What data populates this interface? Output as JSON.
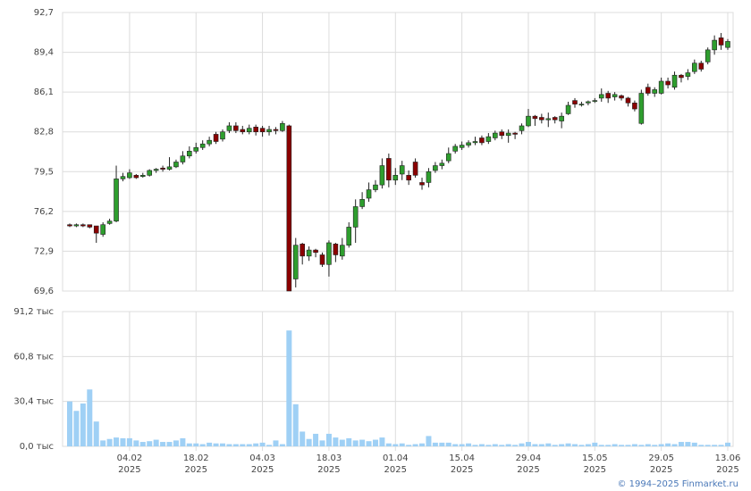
{
  "chart_data": {
    "type": "candlestick",
    "categories": [
      null,
      null,
      null,
      null,
      null,
      null,
      null,
      null,
      null,
      "04.02",
      null,
      null,
      null,
      null,
      null,
      null,
      null,
      null,
      null,
      "18.02",
      null,
      null,
      null,
      null,
      null,
      null,
      null,
      null,
      null,
      "04.03",
      null,
      null,
      null,
      null,
      null,
      null,
      null,
      null,
      null,
      "18.03",
      null,
      null,
      null,
      null,
      null,
      null,
      null,
      null,
      null,
      "01.04",
      null,
      null,
      null,
      null,
      null,
      null,
      null,
      null,
      null,
      "15.04",
      null,
      null,
      null,
      null,
      null,
      null,
      null,
      null,
      null,
      "29.04",
      null,
      null,
      null,
      null,
      null,
      null,
      null,
      null,
      null,
      "15.05",
      null,
      null,
      null,
      null,
      null,
      null,
      null,
      null,
      null,
      "29.05",
      null,
      null,
      null,
      null,
      null,
      null,
      null,
      null,
      null,
      "13.06"
    ],
    "year_label": "2025",
    "open": [
      75.1,
      75.0,
      75.1,
      75.1,
      75.0,
      74.3,
      75.2,
      75.4,
      78.9,
      79.0,
      79.2,
      79.1,
      79.2,
      79.6,
      79.8,
      79.7,
      79.9,
      80.3,
      80.8,
      81.2,
      81.5,
      81.8,
      82.6,
      82.2,
      82.9,
      83.3,
      83.0,
      82.8,
      83.2,
      83.1,
      82.8,
      83.0,
      82.9,
      83.3,
      70.6,
      73.5,
      72.5,
      73.0,
      72.6,
      71.8,
      73.5,
      72.5,
      73.4,
      74.9,
      76.6,
      77.3,
      78.0,
      78.4,
      80.6,
      78.8,
      79.3,
      79.2,
      80.3,
      78.6,
      78.6,
      79.6,
      80.0,
      80.4,
      81.2,
      81.5,
      81.7,
      81.9,
      82.3,
      82.0,
      82.3,
      82.8,
      82.5,
      82.7,
      82.9,
      83.3,
      84.1,
      84.0,
      83.8,
      84.0,
      83.7,
      84.3,
      85.4,
      85.1,
      85.2,
      85.4,
      85.6,
      86.0,
      85.7,
      85.8,
      85.6,
      85.2,
      83.5,
      86.5,
      86.0,
      86.0,
      87.0,
      86.5,
      87.5,
      87.4,
      87.8,
      88.5,
      88.6,
      89.6,
      90.6,
      89.8
    ],
    "high": [
      75.2,
      75.2,
      75.2,
      75.1,
      75.0,
      75.3,
      75.6,
      80.0,
      79.4,
      79.7,
      79.3,
      79.4,
      79.7,
      79.8,
      80.0,
      80.7,
      80.5,
      81.2,
      81.6,
      81.9,
      82.1,
      82.4,
      82.8,
      83.0,
      83.6,
      83.6,
      83.3,
      83.4,
      83.4,
      83.3,
      83.3,
      83.2,
      83.7,
      83.4,
      74.0,
      73.6,
      73.3,
      73.1,
      72.8,
      73.8,
      73.6,
      74.0,
      75.3,
      77.2,
      77.8,
      78.6,
      78.8,
      80.6,
      81.0,
      79.8,
      80.4,
      79.6,
      80.6,
      79.0,
      79.8,
      80.3,
      80.5,
      81.5,
      81.8,
      82.0,
      82.1,
      82.4,
      82.5,
      82.7,
      82.9,
      83.0,
      83.0,
      82.8,
      83.5,
      84.7,
      84.2,
      84.3,
      84.4,
      84.1,
      84.4,
      85.3,
      85.6,
      85.3,
      85.4,
      85.6,
      86.4,
      86.2,
      86.1,
      85.9,
      85.7,
      85.4,
      86.3,
      86.8,
      86.5,
      87.3,
      87.3,
      87.8,
      87.6,
      88.0,
      88.8,
      88.7,
      89.8,
      90.8,
      91.0,
      90.5
    ],
    "low": [
      74.9,
      74.9,
      74.9,
      74.8,
      73.6,
      74.1,
      75.1,
      75.3,
      78.7,
      78.9,
      78.9,
      79.0,
      79.1,
      79.4,
      79.5,
      79.6,
      79.8,
      80.1,
      80.6,
      81.0,
      81.3,
      81.6,
      81.8,
      82.0,
      82.7,
      82.7,
      82.6,
      82.6,
      82.5,
      82.4,
      82.5,
      82.6,
      82.8,
      69.6,
      69.9,
      71.8,
      72.1,
      72.4,
      71.6,
      70.8,
      72.0,
      72.2,
      73.2,
      73.6,
      76.4,
      77.0,
      77.8,
      78.1,
      78.2,
      78.4,
      78.8,
      78.4,
      79.0,
      78.0,
      78.2,
      79.4,
      79.7,
      80.2,
      81.0,
      81.3,
      81.5,
      81.7,
      81.7,
      81.8,
      82.1,
      82.2,
      81.9,
      82.2,
      82.6,
      83.2,
      83.3,
      83.5,
      83.2,
      83.5,
      83.1,
      84.2,
      84.8,
      84.9,
      85.0,
      85.2,
      85.3,
      85.2,
      85.4,
      85.4,
      84.9,
      84.5,
      83.4,
      85.8,
      85.7,
      85.9,
      86.4,
      86.3,
      86.9,
      87.1,
      87.6,
      87.8,
      88.4,
      89.2,
      89.6,
      89.6
    ],
    "close": [
      75.0,
      75.1,
      75.0,
      74.9,
      74.4,
      75.1,
      75.4,
      78.9,
      79.1,
      79.4,
      79.0,
      79.2,
      79.6,
      79.7,
      79.7,
      79.9,
      80.3,
      80.8,
      81.2,
      81.5,
      81.8,
      82.1,
      82.0,
      82.8,
      83.3,
      82.9,
      82.8,
      83.1,
      82.8,
      82.8,
      83.0,
      82.9,
      83.5,
      69.6,
      73.4,
      72.5,
      73.0,
      72.8,
      71.8,
      73.6,
      72.6,
      73.4,
      74.9,
      76.6,
      77.2,
      78.0,
      78.4,
      80.0,
      78.8,
      79.2,
      80.0,
      78.8,
      79.2,
      78.4,
      79.5,
      80.0,
      80.2,
      81.0,
      81.6,
      81.7,
      81.9,
      82.0,
      81.9,
      82.4,
      82.7,
      82.5,
      82.7,
      82.6,
      83.3,
      84.1,
      83.9,
      83.8,
      83.9,
      83.8,
      84.1,
      85.0,
      85.1,
      85.1,
      85.3,
      85.4,
      85.9,
      85.6,
      85.9,
      85.6,
      85.2,
      84.7,
      86.0,
      86.0,
      86.3,
      87.0,
      86.7,
      87.5,
      87.3,
      87.7,
      88.5,
      88.0,
      89.6,
      90.4,
      90.0,
      90.3
    ],
    "volume": [
      30.4,
      24,
      29,
      38.5,
      16.8,
      4,
      5,
      6,
      5.5,
      5.5,
      4,
      3,
      3.5,
      4.5,
      3,
      3,
      4,
      5.5,
      2,
      2,
      1.5,
      2.5,
      2,
      2,
      1.5,
      1.5,
      1.5,
      1.5,
      2,
      2.5,
      1,
      4,
      1.5,
      78.4,
      28.5,
      10,
      5,
      8.5,
      4,
      8.5,
      6,
      4.5,
      5.5,
      4,
      4.5,
      3.5,
      4.5,
      6,
      2,
      1.5,
      2,
      1,
      1.5,
      2,
      7,
      2.5,
      2.5,
      2.5,
      1.5,
      1.5,
      2,
      1,
      1.5,
      1,
      1.5,
      1,
      1.5,
      1,
      2,
      3,
      1.5,
      1.5,
      2,
      1,
      1.5,
      2,
      1.5,
      1,
      1.5,
      2.5,
      1,
      1,
      1.5,
      1,
      1,
      1.5,
      1,
      1.5,
      1,
      1.5,
      2,
      1.5,
      3,
      3,
      2.5,
      1,
      1,
      1,
      1,
      2.5
    ],
    "up_color": "#2e9e2e",
    "down_color": "#8b0000",
    "volume_color": "#9fd0f5",
    "ylim": [
      69.6,
      92.7
    ],
    "yticks": [
      {
        "value": 69.6,
        "label": "69,6"
      },
      {
        "value": 72.9,
        "label": "72,9"
      },
      {
        "value": 76.2,
        "label": "76,2"
      },
      {
        "value": 79.5,
        "label": "79,5"
      },
      {
        "value": 82.8,
        "label": "82,8"
      },
      {
        "value": 86.1,
        "label": "86,1"
      },
      {
        "value": 89.4,
        "label": "89,4"
      },
      {
        "value": 92.7,
        "label": "92,7"
      }
    ],
    "volume_ylim": [
      0,
      91.2
    ],
    "volume_yticks": [
      {
        "value": 0,
        "label": "0,0 тыс"
      },
      {
        "value": 30.4,
        "label": "30,4 тыс"
      },
      {
        "value": 60.8,
        "label": "60,8 тыс"
      },
      {
        "value": 91.2,
        "label": "91,2 тыс"
      }
    ],
    "grid": true
  },
  "footer": "© 1994–2025 Finmarket.ru"
}
